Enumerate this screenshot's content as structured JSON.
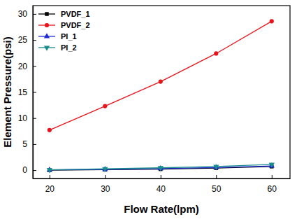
{
  "chart_data": {
    "type": "line",
    "x_label": "Flow Rate(lpm)",
    "y_label": "Element Pressure(psi)",
    "x": [
      20,
      30,
      40,
      50,
      60
    ],
    "series": [
      {
        "name": "PVDF_1",
        "color": "#000000",
        "marker": "square",
        "values": [
          0.0,
          0.1,
          0.2,
          0.4,
          0.7
        ]
      },
      {
        "name": "PVDF_2",
        "color": "#e8141c",
        "marker": "circle",
        "values": [
          7.7,
          12.3,
          17.0,
          22.4,
          28.6
        ]
      },
      {
        "name": "PI_1",
        "color": "#1f2bd6",
        "marker": "triangle-up",
        "values": [
          0.05,
          0.15,
          0.3,
          0.5,
          0.8
        ]
      },
      {
        "name": "PI_2",
        "color": "#1a8c8c",
        "marker": "triangle-down",
        "values": [
          0.05,
          0.25,
          0.45,
          0.7,
          1.1
        ]
      }
    ],
    "xlim": [
      17,
      63.3
    ],
    "ylim": [
      -1.6,
      31.6
    ],
    "xticks": [
      20,
      30,
      40,
      50,
      60
    ],
    "yticks": [
      0,
      5,
      10,
      15,
      20,
      25,
      30
    ],
    "grid": false,
    "legend": "upper left"
  }
}
